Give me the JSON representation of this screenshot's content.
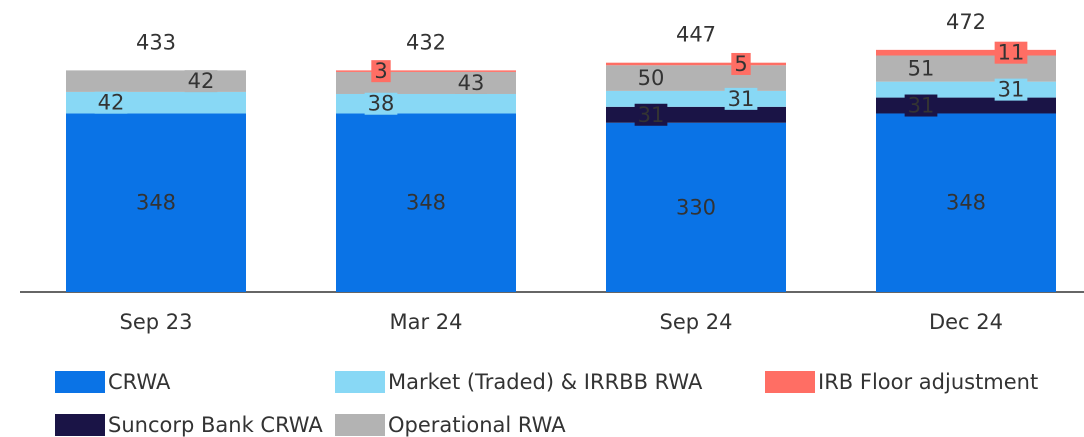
{
  "chart_data": {
    "type": "stacked_bar",
    "categories": [
      "Sep 23",
      "Mar 24",
      "Sep 24",
      "Dec 24"
    ],
    "series": [
      {
        "name": "CRWA",
        "color": "#0a73e6",
        "values": [
          348,
          348,
          330,
          348
        ]
      },
      {
        "name": "Suncorp Bank CRWA",
        "color": "#1a1446",
        "values": [
          null,
          null,
          31,
          31
        ]
      },
      {
        "name": "Market (Traded) & IRRBB RWA",
        "color": "#88d8f5",
        "values": [
          42,
          38,
          31,
          31
        ]
      },
      {
        "name": "Operational RWA",
        "color": "#b3b3b3",
        "values": [
          42,
          43,
          50,
          51
        ]
      },
      {
        "name": "IRB Floor adjustment",
        "color": "#ff6e64",
        "values": [
          null,
          3,
          5,
          11
        ]
      }
    ],
    "totals": [
      433,
      432,
      447,
      472
    ]
  }
}
